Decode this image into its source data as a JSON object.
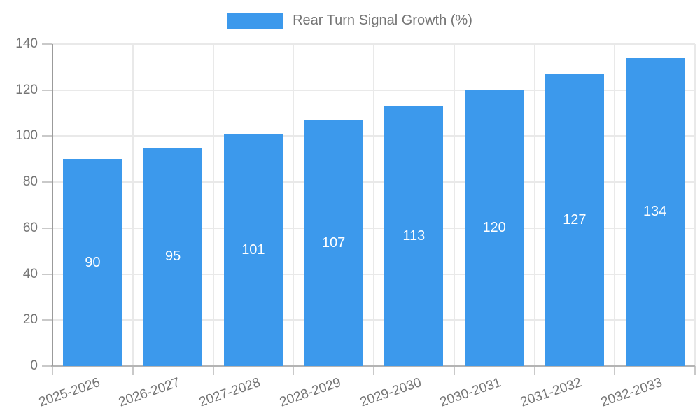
{
  "chart_data": {
    "type": "bar",
    "title": "Rear Turn Signal Growth (%)",
    "categories": [
      "2025-2026",
      "2026-2027",
      "2027-2028",
      "2028-2029",
      "2029-2030",
      "2030-2031",
      "2031-2032",
      "2032-2033"
    ],
    "values": [
      90,
      95,
      101,
      107,
      113,
      120,
      127,
      134
    ],
    "xlabel": "",
    "ylabel": "",
    "ylim": [
      0,
      140
    ],
    "yticks": [
      0,
      20,
      40,
      60,
      80,
      100,
      120,
      140
    ],
    "grid": true,
    "legend_position": "top",
    "value_labels": "centered-inside-bars-white",
    "colors": {
      "bar": "#3c99ec",
      "value_label": "#ffffff",
      "axis_text": "#757575",
      "grid": "#e9e9e9",
      "axis_line": "#9b9b9b",
      "baseline": "#b4b4b4",
      "tick": "#c9c9c9"
    }
  }
}
